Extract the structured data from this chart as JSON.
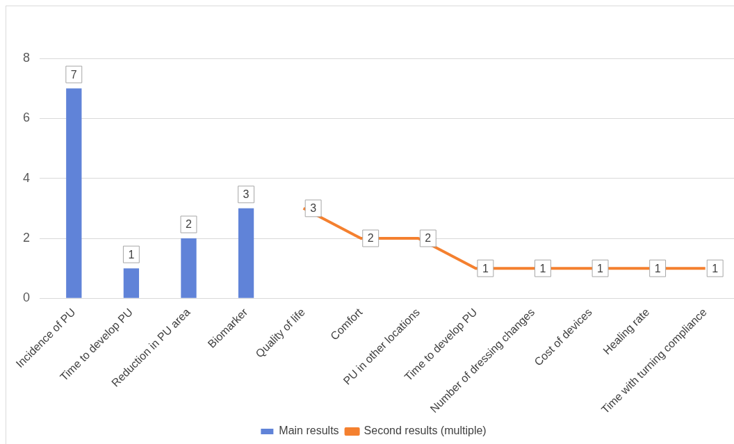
{
  "chart_data": {
    "type": "bar",
    "categories": [
      "Incidence of PU",
      "Time to develop PU",
      "Reduction in PU area",
      "Biomarker",
      "Quality of life",
      "Comfort",
      "PU in other locations",
      "Time to develop PU",
      "Number of dressing changes",
      "Cost of devices",
      "Healing rate",
      "Time with turning compliance"
    ],
    "series": [
      {
        "name": "Main results",
        "type": "bar",
        "color": "#6083d8",
        "values": [
          7,
          1,
          2,
          3,
          null,
          null,
          null,
          null,
          null,
          null,
          null,
          null
        ]
      },
      {
        "name": "Second results (multiple)",
        "type": "line",
        "color": "#f4802f",
        "values": [
          null,
          null,
          null,
          null,
          3,
          2,
          2,
          1,
          1,
          1,
          1,
          1
        ]
      }
    ],
    "ylim": [
      0,
      8
    ],
    "yticks": [
      0,
      2,
      4,
      6,
      8
    ],
    "grid": "y",
    "legend": "bottom",
    "data_labels": true
  }
}
